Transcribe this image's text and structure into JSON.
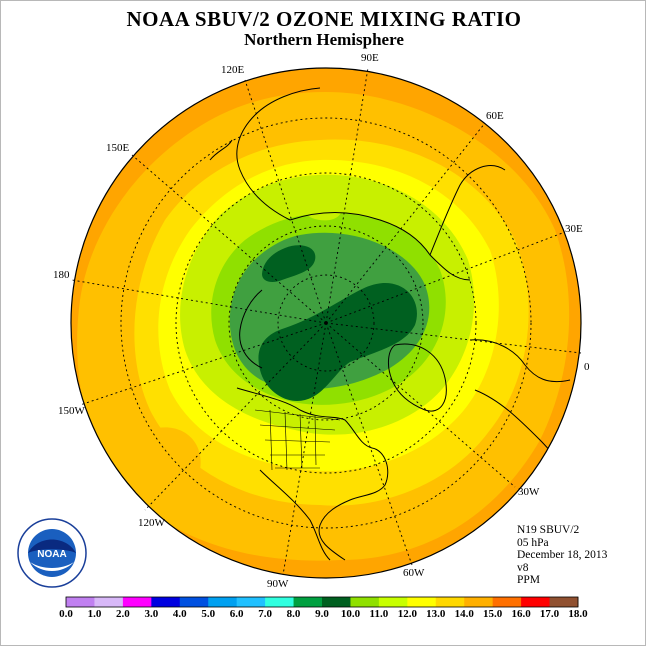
{
  "title": "NOAA SBUV/2 OZONE MIXING RATIO",
  "subtitle": "Northern Hemisphere",
  "info": {
    "satellite": "N19 SBUV/2",
    "pressure": "05 hPa",
    "date": "December 18, 2013",
    "version": "v8",
    "units": "PPM"
  },
  "logo": {
    "text": "NOAA",
    "ring_text": "NATIONAL OCEANIC AND ATMOSPHERIC ADMINISTRATION · U.S. DEPARTMENT OF COMMERCE"
  },
  "longitude_labels": [
    "90E",
    "60E",
    "30E",
    "0",
    "30W",
    "60W",
    "90W",
    "120W",
    "150W",
    "180",
    "150E",
    "120E"
  ],
  "colorbar": {
    "colors": [
      "#c080f0",
      "#d8b8f8",
      "#ff00ff",
      "#0000e0",
      "#0050e0",
      "#00a0f0",
      "#20c0ff",
      "#30ffe0",
      "#00a040",
      "#006020",
      "#90e000",
      "#c8ff00",
      "#ffff00",
      "#ffd800",
      "#ffb000",
      "#ff7000",
      "#ff0000",
      "#905030"
    ],
    "labels": [
      "0.0",
      "1.0",
      "2.0",
      "3.0",
      "4.0",
      "5.0",
      "6.0",
      "7.0",
      "8.0",
      "9.0",
      "10.0",
      "11.0",
      "12.0",
      "13.0",
      "14.0",
      "15.0",
      "16.0",
      "17.0",
      "18.0"
    ]
  },
  "contour_colors": {
    "dark_orange": "#ffa500",
    "orange": "#ffc000",
    "yellow_orange": "#ffe000",
    "yellow": "#ffff00",
    "yellow_green": "#c8f000",
    "light_green": "#90e000",
    "green": "#40a040",
    "dark_green": "#006020"
  }
}
